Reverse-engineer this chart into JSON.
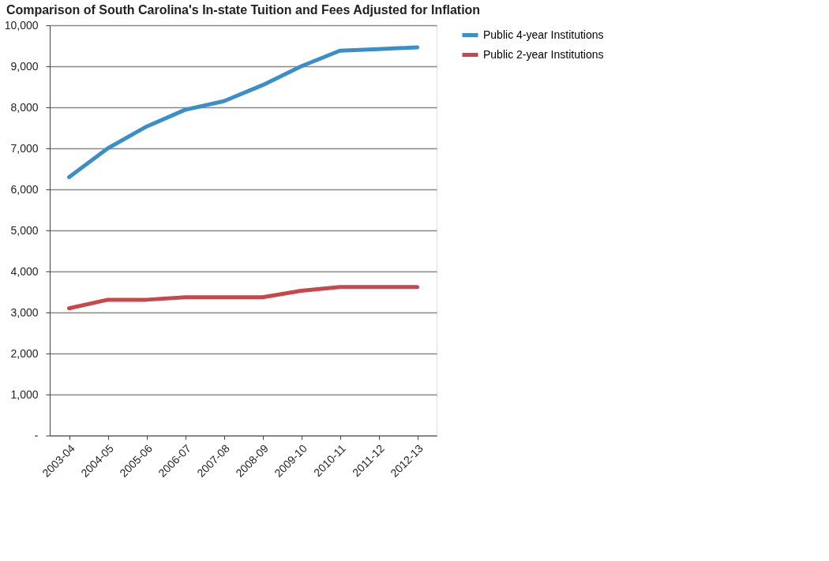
{
  "chart_data": {
    "type": "line",
    "title": "Comparison of South Carolina's In-state Tuition and Fees Adjusted for Inflation",
    "categories": [
      "2003-04",
      "2004-05",
      "2005-06",
      "2006-07",
      "2007-08",
      "2008-09",
      "2009-10",
      "2010-11",
      "2011-12",
      "2012-13"
    ],
    "series": [
      {
        "name": "Public 4-year Institutions",
        "color": "#3a8fc9",
        "values": [
          6300,
          7000,
          7530,
          7940,
          8150,
          8540,
          9000,
          9380,
          9420,
          9460
        ]
      },
      {
        "name": "Public 2-year Institutions",
        "color": "#c8474b",
        "values": [
          3100,
          3310,
          3310,
          3370,
          3370,
          3370,
          3530,
          3620,
          3620,
          3620
        ]
      }
    ],
    "ylim": [
      0,
      10000
    ],
    "yticks": [
      {
        "value": 0,
        "label": "-"
      },
      {
        "value": 1000,
        "label": "1,000"
      },
      {
        "value": 2000,
        "label": "2,000"
      },
      {
        "value": 3000,
        "label": "3,000"
      },
      {
        "value": 4000,
        "label": "4,000"
      },
      {
        "value": 5000,
        "label": "5,000"
      },
      {
        "value": 6000,
        "label": "6,000"
      },
      {
        "value": 7000,
        "label": "7,000"
      },
      {
        "value": 8000,
        "label": "8,000"
      },
      {
        "value": 9000,
        "label": "9,000"
      },
      {
        "value": 10000,
        "label": "10,000"
      }
    ],
    "grid": "y",
    "legend": "right",
    "marker": "none",
    "line_style": "solid"
  }
}
